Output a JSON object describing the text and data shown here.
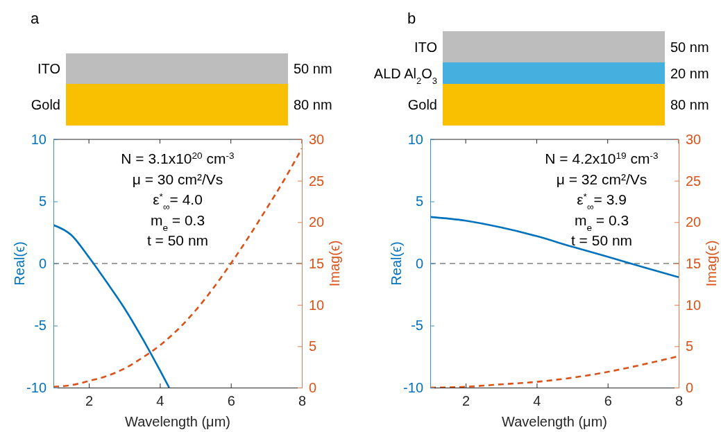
{
  "chart_data": [
    {
      "type": "line",
      "title": "a",
      "xlabel": "Wavelength (μm)",
      "ylabel": "Real(ϵ)",
      "y2label": "Imag(ϵ)",
      "xlim": [
        1,
        8
      ],
      "xticks": [
        2,
        4,
        6,
        8
      ],
      "ylim": [
        -10,
        10
      ],
      "yticks": [
        -10,
        -5,
        0,
        5,
        10
      ],
      "y2lim": [
        0,
        30
      ],
      "y2ticks": [
        0,
        5,
        10,
        15,
        20,
        25,
        30
      ],
      "grid": false,
      "ref_lines": [
        {
          "axis": "y",
          "value": 0,
          "color": "#808080",
          "line_style": "dashed"
        }
      ],
      "annotations": [
        "N = 3.1x10$^{20}$ cm$^{-3}$",
        "μ = 30 cm²/Vs",
        "ε$^{*}$$_{∞}$= 4.0",
        "m$_{e}$ = 0.3",
        "t = 50 nm",
        "ITO",
        "50 nm",
        "Gold",
        "80 nm"
      ],
      "series": [
        {
          "color": "#0072bd",
          "line_style": "solid",
          "x": [
            1,
            1.5,
            2,
            2.5,
            3,
            3.5,
            4,
            4.26
          ],
          "values": [
            3.1,
            2.3,
            0.5,
            -1.5,
            -3.6,
            -6.0,
            -8.6,
            -10
          ]
        },
        {
          "color": "#d95319",
          "line_style": "dashed",
          "axis": "y2",
          "x": [
            1,
            1.5,
            2,
            2.5,
            3,
            3.5,
            4,
            4.5,
            5,
            5.5,
            6,
            6.5,
            7,
            7.5,
            8
          ],
          "values": [
            0.1,
            0.3,
            0.8,
            1.4,
            2.3,
            3.6,
            5.1,
            7.0,
            9.3,
            12.0,
            15.0,
            18.2,
            21.6,
            25.1,
            28.9
          ]
        }
      ]
    },
    {
      "type": "line",
      "title": "b",
      "xlabel": "Wavelength (μm)",
      "ylabel": "Real(ϵ)",
      "y2label": "Imag(ϵ)",
      "xlim": [
        1,
        8
      ],
      "xticks": [
        2,
        4,
        6,
        8
      ],
      "ylim": [
        -10,
        10
      ],
      "yticks": [
        -10,
        -5,
        0,
        5,
        10
      ],
      "y2lim": [
        0,
        30
      ],
      "y2ticks": [
        0,
        5,
        10,
        15,
        20,
        25,
        30
      ],
      "grid": false,
      "ref_lines": [
        {
          "axis": "y",
          "value": 0,
          "color": "#808080",
          "line_style": "dashed"
        }
      ],
      "annotations": [
        "N = 4.2x10$^{19}$ cm$^{-3}$",
        "μ = 32 cm²/Vs",
        "ε$^{*}$$_{∞}$= 3.9",
        "m$_{e}$ = 0.3",
        "t = 50 nm",
        "ITO",
        "50 nm",
        "ALD Al$_{2}$O$_{3}$",
        "20 nm",
        "Gold",
        "80 nm"
      ],
      "series": [
        {
          "color": "#0072bd",
          "line_style": "solid",
          "x": [
            1,
            2,
            3,
            4,
            5,
            6,
            7,
            8
          ],
          "values": [
            3.75,
            3.45,
            2.9,
            2.2,
            1.35,
            0.55,
            -0.3,
            -1.1
          ]
        },
        {
          "color": "#d95319",
          "line_style": "dashed",
          "axis": "y2",
          "x": [
            1,
            2,
            3,
            4,
            5,
            6,
            7,
            8
          ],
          "values": [
            0.0,
            0.1,
            0.4,
            0.7,
            1.2,
            1.9,
            2.8,
            3.8
          ]
        }
      ]
    }
  ]
}
